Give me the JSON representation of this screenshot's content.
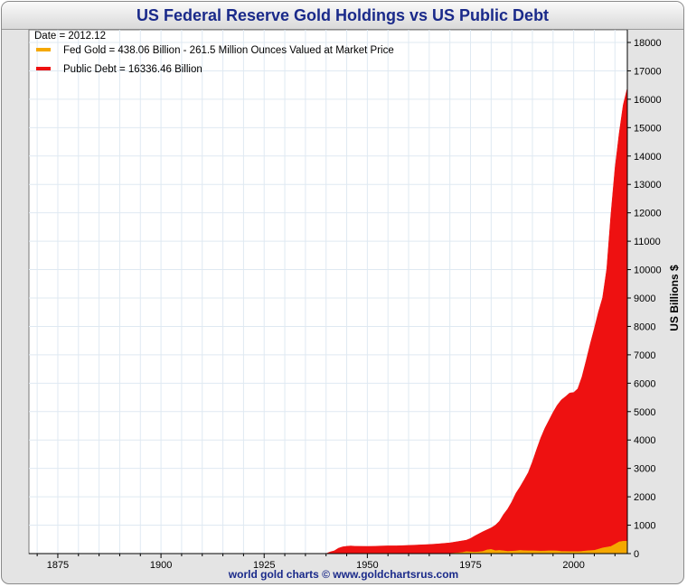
{
  "title": "US Federal Reserve Gold Holdings vs US Public Debt",
  "footer": "world gold charts © www.goldchartsrus.com",
  "chart_data": {
    "type": "area",
    "title": "US Federal Reserve Gold Holdings vs US Public Debt",
    "xlabel": "",
    "ylabel": "US Billions $",
    "xlim": [
      1868,
      2013
    ],
    "ylim": [
      0,
      18000
    ],
    "x_ticks": [
      1875,
      1900,
      1925,
      1950,
      1975,
      2000
    ],
    "y_ticks": [
      0,
      1000,
      2000,
      3000,
      4000,
      5000,
      6000,
      7000,
      8000,
      9000,
      10000,
      11000,
      12000,
      13000,
      14000,
      15000,
      16000,
      17000,
      18000
    ],
    "grid": true,
    "legend_placement": "top-left",
    "date_label": "Date = 2012.12",
    "series": [
      {
        "name": "Public Debt = 16336.46 Billion",
        "color": "#ee1111",
        "points": [
          [
            1940,
            0
          ],
          [
            1941,
            60
          ],
          [
            1942,
            100
          ],
          [
            1943,
            190
          ],
          [
            1944,
            240
          ],
          [
            1945,
            258
          ],
          [
            1946,
            269
          ],
          [
            1947,
            258
          ],
          [
            1950,
            256
          ],
          [
            1952,
            259
          ],
          [
            1953,
            266
          ],
          [
            1955,
            274
          ],
          [
            1957,
            272
          ],
          [
            1960,
            290
          ],
          [
            1962,
            303
          ],
          [
            1965,
            322
          ],
          [
            1967,
            341
          ],
          [
            1970,
            380
          ],
          [
            1972,
            427
          ],
          [
            1974,
            475
          ],
          [
            1975,
            533
          ],
          [
            1976,
            620
          ],
          [
            1978,
            772
          ],
          [
            1980,
            907
          ],
          [
            1981,
            998
          ],
          [
            1982,
            1142
          ],
          [
            1983,
            1377
          ],
          [
            1984,
            1572
          ],
          [
            1985,
            1823
          ],
          [
            1986,
            2125
          ],
          [
            1987,
            2350
          ],
          [
            1988,
            2602
          ],
          [
            1989,
            2857
          ],
          [
            1990,
            3233
          ],
          [
            1991,
            3665
          ],
          [
            1992,
            4065
          ],
          [
            1993,
            4411
          ],
          [
            1994,
            4693
          ],
          [
            1995,
            4974
          ],
          [
            1996,
            5225
          ],
          [
            1997,
            5413
          ],
          [
            1998,
            5526
          ],
          [
            1999,
            5656
          ],
          [
            2000,
            5674
          ],
          [
            2001,
            5807
          ],
          [
            2002,
            6228
          ],
          [
            2003,
            6783
          ],
          [
            2004,
            7379
          ],
          [
            2005,
            7933
          ],
          [
            2006,
            8507
          ],
          [
            2007,
            9008
          ],
          [
            2008,
            10025
          ],
          [
            2009,
            11910
          ],
          [
            2010,
            13562
          ],
          [
            2011,
            14790
          ],
          [
            2012,
            15800
          ],
          [
            2012.9,
            16336
          ]
        ]
      },
      {
        "name": "Fed Gold = 438.06 Billion - 261.5 Million Ounces Valued at Market Price",
        "color": "#f5a800",
        "points": [
          [
            1934,
            0
          ],
          [
            1935,
            2
          ],
          [
            1940,
            6
          ],
          [
            1945,
            7
          ],
          [
            1950,
            8
          ],
          [
            1955,
            8
          ],
          [
            1960,
            7
          ],
          [
            1965,
            5
          ],
          [
            1970,
            6
          ],
          [
            1972,
            25
          ],
          [
            1973,
            40
          ],
          [
            1974,
            70
          ],
          [
            1975,
            60
          ],
          [
            1976,
            50
          ],
          [
            1977,
            60
          ],
          [
            1978,
            80
          ],
          [
            1979,
            130
          ],
          [
            1980,
            150
          ],
          [
            1981,
            105
          ],
          [
            1982,
            115
          ],
          [
            1983,
            100
          ],
          [
            1984,
            80
          ],
          [
            1985,
            85
          ],
          [
            1986,
            95
          ],
          [
            1987,
            115
          ],
          [
            1988,
            105
          ],
          [
            1989,
            100
          ],
          [
            1990,
            100
          ],
          [
            1991,
            95
          ],
          [
            1992,
            88
          ],
          [
            1993,
            93
          ],
          [
            1994,
            100
          ],
          [
            1995,
            100
          ],
          [
            1996,
            95
          ],
          [
            1997,
            75
          ],
          [
            1998,
            76
          ],
          [
            1999,
            72
          ],
          [
            2000,
            72
          ],
          [
            2001,
            70
          ],
          [
            2002,
            80
          ],
          [
            2003,
            95
          ],
          [
            2004,
            107
          ],
          [
            2005,
            116
          ],
          [
            2006,
            155
          ],
          [
            2007,
            200
          ],
          [
            2008,
            227
          ],
          [
            2009,
            250
          ],
          [
            2010,
            330
          ],
          [
            2011,
            415
          ],
          [
            2012,
            436
          ],
          [
            2012.9,
            438
          ]
        ]
      }
    ]
  }
}
